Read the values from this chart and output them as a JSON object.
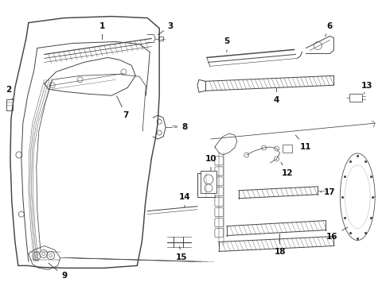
{
  "background_color": "#ffffff",
  "line_color": "#444444",
  "fig_width": 4.9,
  "fig_height": 3.6,
  "dpi": 100
}
